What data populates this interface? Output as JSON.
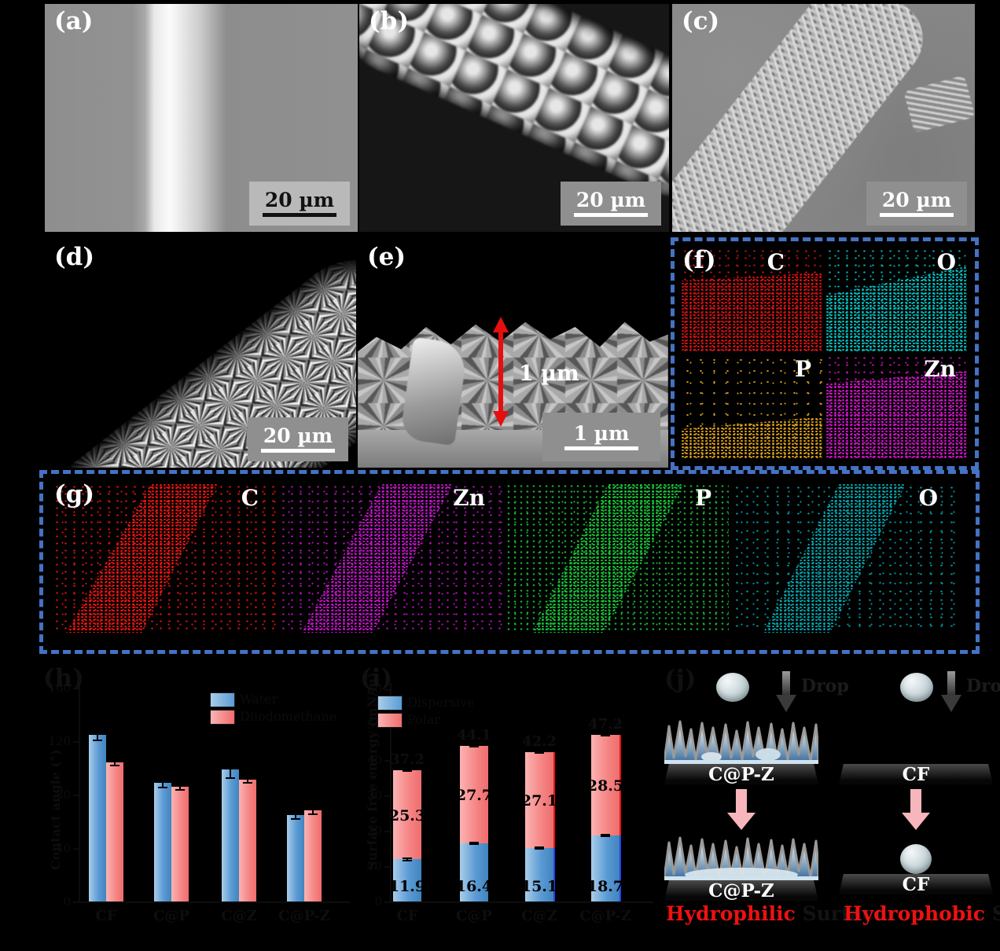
{
  "figure": {
    "accent_colors": {
      "dashed_border": "#4472c4",
      "bar_blue": "#5b9bd5",
      "bar_pink": "#f47f7f",
      "highlight_red": "#ee1111",
      "arrow_red": "#ee1111"
    },
    "panels": {
      "a": {
        "label": "(a)",
        "scale_bar": "20 µm"
      },
      "b": {
        "label": "(b)",
        "scale_bar": "20 µm"
      },
      "c": {
        "label": "(c)",
        "scale_bar": "20 µm"
      },
      "d": {
        "label": "(d)",
        "scale_bar": "20 µm"
      },
      "e": {
        "label": "(e)",
        "scale_bar": "1 µm",
        "thickness_annotation": "1 µm"
      },
      "f": {
        "label": "(f)",
        "maps": [
          {
            "element": "C",
            "color": "#e31212"
          },
          {
            "element": "O",
            "color": "#00cccc"
          },
          {
            "element": "P",
            "color": "#e6a817"
          },
          {
            "element": "Zn",
            "color": "#e012d8"
          }
        ]
      },
      "g": {
        "label": "(g)",
        "maps": [
          {
            "element": "C",
            "color": "#ff1510"
          },
          {
            "element": "Zn",
            "color": "#d014d6"
          },
          {
            "element": "P",
            "color": "#17cc3a"
          },
          {
            "element": "O",
            "color": "#00b0b8"
          }
        ]
      },
      "h": {
        "label": "(h)"
      },
      "i": {
        "label": "(i)"
      },
      "j": {
        "label": "(j)",
        "left": {
          "drop_label": "Drop",
          "surface_label": "C@P-Z",
          "result_surface_label": "C@P-Z",
          "caption_highlight": "Hydrophilic",
          "caption_rest": "Surface"
        },
        "right": {
          "drop_label": "Drop",
          "surface_label": "CF",
          "result_surface_label": "CF",
          "caption_highlight": "Hydrophobic",
          "caption_rest": "Surface"
        }
      }
    }
  },
  "chart_data": [
    {
      "type": "bar",
      "panel": "h",
      "title": "",
      "xlabel": "",
      "ylabel": "Contact angle (°)",
      "categories": [
        "CF",
        "C@P",
        "C@Z",
        "C@P-Z"
      ],
      "series": [
        {
          "name": "Water",
          "color": "#5b9bd5",
          "values": [
            125,
            89,
            99,
            65
          ],
          "errors": [
            5,
            4,
            7,
            4
          ]
        },
        {
          "name": "Diiodomethane",
          "color": "#f47f7f",
          "values": [
            104,
            86,
            91,
            68
          ],
          "errors": [
            3,
            3,
            3,
            3
          ]
        }
      ],
      "ylim": [
        0,
        160
      ],
      "yticks": [
        0,
        40,
        80,
        120,
        160
      ],
      "legend_position": "top-right",
      "grid": false
    },
    {
      "type": "stacked-bar",
      "panel": "i",
      "title": "",
      "xlabel": "",
      "ylabel": "Surface free energy (mN/m)",
      "categories": [
        "CF",
        "C@P",
        "C@Z",
        "C@P-Z"
      ],
      "series": [
        {
          "name": "Dispersive",
          "color": "#5b9bd5",
          "values": [
            11.9,
            16.4,
            15.1,
            18.7
          ],
          "errors": [
            0.5,
            0.5,
            0.5,
            0.5
          ]
        },
        {
          "name": "Polar",
          "color": "#f47f7f",
          "values": [
            25.3,
            27.7,
            27.1,
            28.5
          ],
          "errors": [
            0.6,
            0.6,
            0.5,
            0.6
          ]
        }
      ],
      "totals": [
        37.2,
        44.1,
        42.2,
        47.2
      ],
      "segment_labels": {
        "bottom": [
          "11.9",
          "16.4",
          "15.1",
          "18.7"
        ],
        "top": [
          "25.3",
          "27.7",
          "27.1",
          "28.5"
        ]
      },
      "ylim": [
        0,
        60
      ],
      "yticks": [
        0,
        10,
        20,
        30,
        40,
        50,
        60
      ],
      "legend_position": "top-left",
      "grid": false
    }
  ]
}
